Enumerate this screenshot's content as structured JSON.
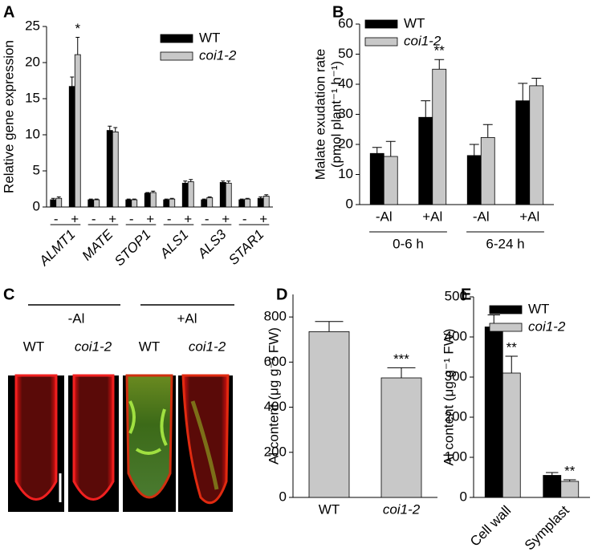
{
  "chart_data": [
    {
      "type": "bar",
      "panel": "A",
      "ylabel": "Relative gene expression",
      "groups": [
        "ALMT1",
        "MATE",
        "STOP1",
        "ALS1",
        "ALS3",
        "STAR1"
      ],
      "categories": [
        "-",
        "+",
        "-",
        "+",
        "-",
        "+",
        "-",
        "+",
        "-",
        "+",
        "-",
        "+"
      ],
      "series": [
        {
          "name": "WT",
          "color": "#000000",
          "values": [
            1.0,
            16.7,
            1.0,
            10.6,
            1.0,
            1.9,
            1.0,
            3.3,
            1.0,
            3.4,
            1.0,
            1.2
          ],
          "errors": [
            0.2,
            1.3,
            0.1,
            0.6,
            0.1,
            0.1,
            0.1,
            0.3,
            0.1,
            0.2,
            0.1,
            0.2
          ]
        },
        {
          "name": "coi1-2",
          "color": "#c8c8c8",
          "values": [
            1.2,
            21.1,
            1.0,
            10.4,
            1.0,
            2.0,
            1.1,
            3.5,
            1.3,
            3.3,
            1.1,
            1.5
          ],
          "errors": [
            0.2,
            2.4,
            0.1,
            0.6,
            0.1,
            0.2,
            0.1,
            0.3,
            0.1,
            0.3,
            0.1,
            0.2
          ],
          "significance": [
            null,
            "*",
            null,
            null,
            null,
            null,
            null,
            null,
            null,
            null,
            null,
            null
          ]
        }
      ],
      "ylim": [
        0,
        25
      ],
      "yticks": [
        0,
        5,
        10,
        15,
        20,
        25
      ]
    },
    {
      "type": "bar",
      "panel": "B",
      "ylabel": [
        "Malate exudation rate",
        "(pmol plant⁻¹ h⁻¹)"
      ],
      "groups": [
        "0-6 h",
        "6-24 h"
      ],
      "categories": [
        "-Al",
        "+Al",
        "-Al",
        "+Al"
      ],
      "series": [
        {
          "name": "WT",
          "color": "#000000",
          "values": [
            17,
            29,
            16.3,
            34.5
          ],
          "errors": [
            2,
            5.5,
            3.7,
            5.8
          ]
        },
        {
          "name": "coi1-2",
          "color": "#c8c8c8",
          "values": [
            16,
            45,
            22.3,
            39.5
          ],
          "errors": [
            5,
            3.2,
            4.3,
            2.5
          ],
          "significance": [
            null,
            "**",
            null,
            null
          ]
        }
      ],
      "ylim": [
        0,
        60
      ],
      "yticks": [
        0,
        10,
        20,
        30,
        40,
        50,
        60
      ]
    },
    {
      "type": "bar",
      "panel": "D",
      "ylabel": "Al content (μg g⁻¹ FW)",
      "categories": [
        "WT",
        "coi1-2"
      ],
      "color": "#c8c8c8",
      "values": [
        735,
        530
      ],
      "errors": [
        45,
        45
      ],
      "significance": [
        null,
        "***"
      ],
      "ylim": [
        0,
        900
      ],
      "yticks": [
        0,
        200,
        400,
        600,
        800
      ]
    },
    {
      "type": "bar",
      "panel": "E",
      "ylabel": "Al content (μg g⁻¹ FW)",
      "categories": [
        "Cell wall",
        "Symplast"
      ],
      "series": [
        {
          "name": "WT",
          "color": "#000000",
          "values": [
            425,
            55
          ],
          "errors": [
            30,
            7
          ]
        },
        {
          "name": "coi1-2",
          "color": "#c8c8c8",
          "values": [
            310,
            40
          ],
          "errors": [
            42,
            4
          ],
          "significance": [
            "**",
            "**"
          ]
        }
      ],
      "ylim": [
        0,
        500
      ],
      "yticks": [
        0,
        100,
        200,
        300,
        400,
        500
      ]
    }
  ],
  "panel_c": {
    "panel": "C",
    "treatments": [
      "-Al",
      "+Al"
    ],
    "genotypes": [
      "WT",
      "coi1-2",
      "WT",
      "coi1-2"
    ]
  }
}
